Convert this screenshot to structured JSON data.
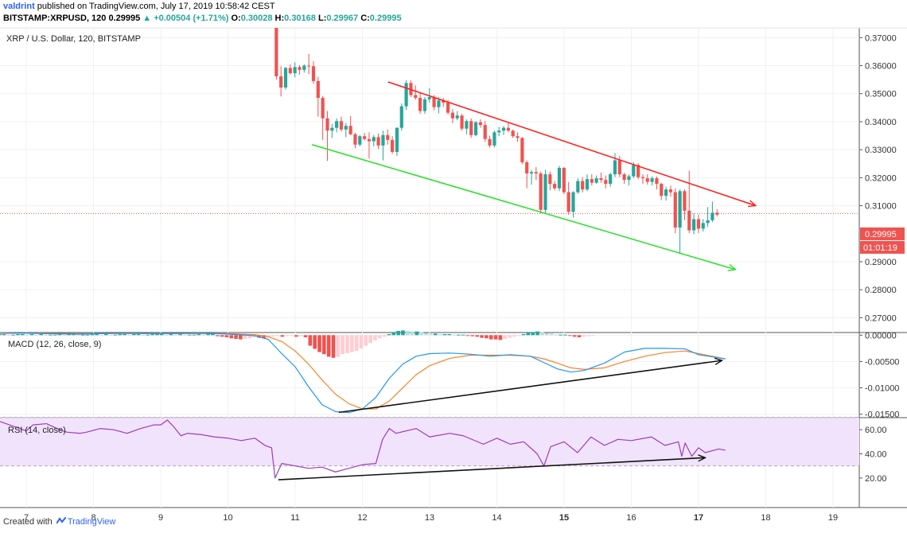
{
  "header": {
    "user": "valdrint",
    "published": "published on TradingView.com, July 17, 2019 10:58:42 CEST",
    "symbol": "BITSTAMP:XRPUSD, 120",
    "last": "0.29995",
    "change": "▲ +0.00504 (+1.71%)",
    "o_label": "O:",
    "o": "0.30028",
    "h_label": "H:",
    "h": "0.30168",
    "l_label": "L:",
    "l": "0.29967",
    "c_label": "C:",
    "c": "0.29995"
  },
  "footer": {
    "created_with": "Created with",
    "brand": "TradingView"
  },
  "colors": {
    "up": "#26a69a",
    "down": "#ef5350",
    "upper_trendline": "#ff1f1f",
    "lower_trendline": "#32e032",
    "macd_line": "#2196f3",
    "signal_line": "#ff7f27",
    "rsi_line": "#9c3bbf",
    "rsi_band": "#f1e3fb",
    "price_tag": "#ef5350"
  },
  "chart_data": [
    {
      "type": "candlestick",
      "title": "XRP / U.S. Dollar, 120, BITSTAMP",
      "xlabel": "",
      "ylabel": "",
      "x_ticks": [
        "7",
        "8",
        "9",
        "10",
        "11",
        "12",
        "13",
        "14",
        "15",
        "16",
        "17",
        "18",
        "19"
      ],
      "y_ticks": [
        "0.37000",
        "0.36000",
        "0.35000",
        "0.34000",
        "0.33000",
        "0.32000",
        "0.31000",
        "0.29000",
        "0.28000",
        "0.27000"
      ],
      "ylim": [
        0.265,
        0.3735
      ],
      "last_price_label": "0.29995",
      "countdown_label": "01:01:19",
      "ohlc": [
        [
          0.3735,
          0.3735,
          0.355,
          0.3562
        ],
        [
          0.3562,
          0.3598,
          0.349,
          0.3522
        ],
        [
          0.3522,
          0.3595,
          0.3515,
          0.3592
        ],
        [
          0.3592,
          0.3605,
          0.3568,
          0.3573
        ],
        [
          0.3573,
          0.3612,
          0.3558,
          0.3595
        ],
        [
          0.3595,
          0.3602,
          0.3568,
          0.3585
        ],
        [
          0.3585,
          0.3605,
          0.3575,
          0.36
        ],
        [
          0.36,
          0.3642,
          0.357,
          0.3598
        ],
        [
          0.3598,
          0.3616,
          0.3535,
          0.3545
        ],
        [
          0.3545,
          0.356,
          0.3418,
          0.3485
        ],
        [
          0.3485,
          0.3492,
          0.3335,
          0.3412
        ],
        [
          0.3412,
          0.3438,
          0.326,
          0.3368
        ],
        [
          0.3368,
          0.3392,
          0.3342,
          0.3378
        ],
        [
          0.3378,
          0.3412,
          0.3362,
          0.3402
        ],
        [
          0.3402,
          0.3418,
          0.3365,
          0.3372
        ],
        [
          0.3372,
          0.3395,
          0.3345,
          0.3385
        ],
        [
          0.3385,
          0.342,
          0.3352,
          0.3355
        ],
        [
          0.3355,
          0.336,
          0.3305,
          0.3318
        ],
        [
          0.3318,
          0.3352,
          0.3312,
          0.3348
        ],
        [
          0.3348,
          0.336,
          0.3332,
          0.3338
        ],
        [
          0.3338,
          0.3362,
          0.3268,
          0.333
        ],
        [
          0.333,
          0.3352,
          0.3312,
          0.3345
        ],
        [
          0.3345,
          0.3358,
          0.3302,
          0.3315
        ],
        [
          0.3315,
          0.3368,
          0.3262,
          0.3352
        ],
        [
          0.3352,
          0.3372,
          0.3318,
          0.3335
        ],
        [
          0.3335,
          0.3348,
          0.3285,
          0.3292
        ],
        [
          0.3292,
          0.338,
          0.3278,
          0.3378
        ],
        [
          0.3378,
          0.3465,
          0.3368,
          0.3455
        ],
        [
          0.3455,
          0.3548,
          0.3442,
          0.3538
        ],
        [
          0.3538,
          0.3548,
          0.3488,
          0.3495
        ],
        [
          0.3495,
          0.353,
          0.3478,
          0.3485
        ],
        [
          0.3485,
          0.3505,
          0.3428,
          0.3438
        ],
        [
          0.3438,
          0.3488,
          0.3428,
          0.348
        ],
        [
          0.348,
          0.352,
          0.3468,
          0.3488
        ],
        [
          0.3488,
          0.3495,
          0.344,
          0.3452
        ],
        [
          0.3452,
          0.3488,
          0.343,
          0.3476
        ],
        [
          0.3476,
          0.3485,
          0.3452,
          0.3468
        ],
        [
          0.3468,
          0.3478,
          0.3425,
          0.3432
        ],
        [
          0.3432,
          0.3445,
          0.3395,
          0.3412
        ],
        [
          0.3412,
          0.3438,
          0.3405,
          0.3422
        ],
        [
          0.3422,
          0.3428,
          0.3368,
          0.3375
        ],
        [
          0.3375,
          0.3408,
          0.3355,
          0.3402
        ],
        [
          0.3402,
          0.3412,
          0.3342,
          0.3352
        ],
        [
          0.3352,
          0.3402,
          0.3348,
          0.3398
        ],
        [
          0.3398,
          0.3408,
          0.3378,
          0.3388
        ],
        [
          0.3388,
          0.3402,
          0.3328,
          0.3338
        ],
        [
          0.3338,
          0.335,
          0.3308,
          0.3315
        ],
        [
          0.3315,
          0.3368,
          0.3308,
          0.3362
        ],
        [
          0.3362,
          0.3382,
          0.3348,
          0.3368
        ],
        [
          0.3368,
          0.3385,
          0.3352,
          0.3378
        ],
        [
          0.3378,
          0.3395,
          0.3362,
          0.3368
        ],
        [
          0.3368,
          0.3372,
          0.3342,
          0.3348
        ],
        [
          0.3348,
          0.3362,
          0.3328,
          0.3342
        ],
        [
          0.3342,
          0.3345,
          0.3248,
          0.3255
        ],
        [
          0.3255,
          0.3262,
          0.3162,
          0.3215
        ],
        [
          0.3215,
          0.3228,
          0.3175,
          0.322
        ],
        [
          0.322,
          0.3238,
          0.3192,
          0.3215
        ],
        [
          0.3215,
          0.3222,
          0.3072,
          0.3085
        ],
        [
          0.3085,
          0.3228,
          0.3075,
          0.3212
        ],
        [
          0.3212,
          0.3222,
          0.3155,
          0.3178
        ],
        [
          0.3178,
          0.3188,
          0.3155,
          0.3162
        ],
        [
          0.3162,
          0.3242,
          0.3152,
          0.3235
        ],
        [
          0.3235,
          0.3238,
          0.3142,
          0.3148
        ],
        [
          0.3148,
          0.3185,
          0.3068,
          0.3078
        ],
        [
          0.3078,
          0.3152,
          0.3058,
          0.3148
        ],
        [
          0.3148,
          0.3198,
          0.3142,
          0.3188
        ],
        [
          0.3188,
          0.3202,
          0.3148,
          0.3158
        ],
        [
          0.3158,
          0.3212,
          0.3152,
          0.3195
        ],
        [
          0.3195,
          0.3212,
          0.3172,
          0.3182
        ],
        [
          0.3182,
          0.3208,
          0.3178,
          0.3198
        ],
        [
          0.3198,
          0.3218,
          0.3182,
          0.3192
        ],
        [
          0.3192,
          0.3208,
          0.3162,
          0.3178
        ],
        [
          0.3178,
          0.3218,
          0.3168,
          0.3212
        ],
        [
          0.3212,
          0.3288,
          0.3202,
          0.3262
        ],
        [
          0.3262,
          0.3278,
          0.3202,
          0.3212
        ],
        [
          0.3212,
          0.3218,
          0.3178,
          0.3192
        ],
        [
          0.3192,
          0.3212,
          0.3172,
          0.3205
        ],
        [
          0.3205,
          0.3255,
          0.3198,
          0.3245
        ],
        [
          0.3245,
          0.3252,
          0.3195,
          0.3202
        ],
        [
          0.3202,
          0.3212,
          0.3178,
          0.3198
        ],
        [
          0.3198,
          0.3212,
          0.3175,
          0.3185
        ],
        [
          0.3185,
          0.3205,
          0.3172,
          0.3198
        ],
        [
          0.3198,
          0.3205,
          0.3158,
          0.3178
        ],
        [
          0.3178,
          0.3182,
          0.312,
          0.3135
        ],
        [
          0.3135,
          0.3168,
          0.3118,
          0.3158
        ],
        [
          0.3158,
          0.3172,
          0.3132,
          0.3148
        ],
        [
          0.3148,
          0.3162,
          0.3002,
          0.3022
        ],
        [
          0.3022,
          0.3158,
          0.2928,
          0.3152
        ],
        [
          0.3152,
          0.3158,
          0.3048,
          0.3082
        ],
        [
          0.3082,
          0.3225,
          0.3002,
          0.3012
        ],
        [
          0.3012,
          0.3072,
          0.2998,
          0.3052
        ],
        [
          0.3052,
          0.3068,
          0.3002,
          0.3018
        ],
        [
          0.3018,
          0.3052,
          0.3008,
          0.3038
        ],
        [
          0.3038,
          0.3095,
          0.3025,
          0.3048
        ],
        [
          0.3048,
          0.3115,
          0.3042,
          0.3075
        ],
        [
          0.3075,
          0.3088,
          0.3062,
          0.3068
        ]
      ],
      "first_bar_x": 10.72,
      "bar_step": 0.069,
      "horizontal_line": 0.3072,
      "upper_trendline": [
        [
          12.38,
          0.3542
        ],
        [
          17.85,
          0.31
        ]
      ],
      "lower_trendline": [
        [
          11.25,
          0.3318
        ],
        [
          17.55,
          0.2872
        ]
      ]
    },
    {
      "type": "histogram+line",
      "title": "MACD (12, 26, close, 9)",
      "y_ticks": [
        "0.00000",
        "-0.00500",
        "-0.01000",
        "-0.01500"
      ],
      "ylim": [
        -0.0155,
        0.0005
      ],
      "series": [
        {
          "x": [
            6.6,
            7.2,
            7.8,
            8.4,
            9.0,
            9.6,
            10.0,
            10.4,
            10.6,
            10.8,
            11.0,
            11.2,
            11.4,
            11.6,
            11.8,
            12.0,
            12.2,
            12.4,
            12.6,
            12.8,
            13.0,
            13.3,
            13.6,
            13.9,
            14.2,
            14.5,
            14.7,
            14.9,
            15.1,
            15.3,
            15.6,
            15.9,
            16.2,
            16.5,
            16.8,
            17.0,
            17.4
          ],
          "values": [
            0.0005,
            0.0003,
            0.0002,
            0.0004,
            0.0003,
            0.0004,
            0.0002,
            -0.0001,
            -0.0008,
            -0.0035,
            -0.006,
            -0.0098,
            -0.0132,
            -0.0145,
            -0.0147,
            -0.014,
            -0.0118,
            -0.0082,
            -0.0055,
            -0.004,
            -0.0035,
            -0.0034,
            -0.0036,
            -0.004,
            -0.0037,
            -0.004,
            -0.0052,
            -0.0064,
            -0.007,
            -0.0067,
            -0.0053,
            -0.0032,
            -0.0025,
            -0.0025,
            -0.0026,
            -0.0037,
            -0.0045
          ]
        },
        {
          "x": [
            6.6,
            7.2,
            7.8,
            8.4,
            9.0,
            9.6,
            10.0,
            10.4,
            10.6,
            10.8,
            11.0,
            11.2,
            11.4,
            11.6,
            11.8,
            12.0,
            12.2,
            12.4,
            12.6,
            12.8,
            13.0,
            13.3,
            13.6,
            13.9,
            14.2,
            14.5,
            14.7,
            14.9,
            15.1,
            15.3,
            15.6,
            15.9,
            16.2,
            16.5,
            16.8,
            17.0,
            17.4
          ],
          "values": [
            0.0003,
            0.0004,
            0.0003,
            0.0003,
            0.0003,
            0.0003,
            0.0003,
            0.0001,
            -0.0003,
            -0.0012,
            -0.003,
            -0.0055,
            -0.0085,
            -0.0112,
            -0.013,
            -0.014,
            -0.014,
            -0.0125,
            -0.01,
            -0.0075,
            -0.0058,
            -0.0044,
            -0.0038,
            -0.0038,
            -0.0038,
            -0.004,
            -0.0045,
            -0.0053,
            -0.0062,
            -0.0065,
            -0.0062,
            -0.005,
            -0.004,
            -0.0033,
            -0.003,
            -0.0035,
            -0.0045
          ]
        }
      ],
      "histogram": {
        "x_start": 6.6,
        "step": 0.069,
        "values": [
          0.0002,
          0.0002,
          0.0001,
          0.0001,
          0.0002,
          0.0002,
          0.0001,
          0.0002,
          0.0001,
          0.0002,
          0.0001,
          0.0001,
          0.0001,
          0.0002,
          0.0001,
          0.0002,
          0.0002,
          0.0001,
          0.0001,
          0.0001,
          0.0002,
          0.0002,
          0.0001,
          0.0002,
          0.0001,
          0.0001,
          0.0002,
          0.0002,
          0.0001,
          0.0002,
          0.0002,
          0.0001,
          0.0001,
          0.0002,
          0.0002,
          0.0002,
          0.0001,
          0.0002,
          0.0001,
          0.0002,
          0.0001,
          0.0001,
          0.0001,
          0.0002,
          0.0001,
          0.0002,
          0.0002,
          -0.0002,
          -0.0003,
          -0.0004,
          -0.0006,
          -0.0007,
          -0.0008,
          -0.0007,
          -0.0006,
          -0.0004,
          -0.0005,
          -0.0006,
          -0.0005,
          -0.0003,
          -0.0002,
          -0.0003,
          -0.0002,
          -0.0001,
          -0.0003,
          -0.0002,
          -0.0004,
          -0.002,
          -0.0026,
          -0.0032,
          -0.0036,
          -0.0041,
          -0.0043,
          -0.0041,
          -0.0036,
          -0.0034,
          -0.0032,
          -0.003,
          -0.0025,
          -0.002,
          -0.0015,
          -0.001,
          -0.0006,
          -0.0003,
          0.0002,
          0.0006,
          0.0008,
          0.0009,
          0.0008,
          0.0007,
          0.0007,
          0.0006,
          0.0004,
          0.0003,
          0.0003,
          0.0002,
          0.0002,
          0.0002,
          0.0001,
          0.0001,
          0.0001,
          -0.0001,
          -0.0002,
          -0.0003,
          -0.0005,
          -0.0006,
          -0.0008,
          -0.0008,
          -0.0009,
          -0.0007,
          -0.0005,
          -0.0003,
          -0.0001,
          0.0002,
          0.0005,
          0.0006,
          0.0007,
          0.0006,
          0.0004,
          0.0003,
          0.0001,
          0.0001,
          0.0001,
          -0.0001,
          -0.0003,
          -0.0004,
          -0.0003,
          -0.0002,
          -0.0001
        ]
      },
      "divergence_line": [
        [
          11.65,
          -0.01465
        ],
        [
          17.35,
          -0.0048
        ]
      ]
    },
    {
      "type": "line",
      "title": "RSI (14, close)",
      "y_ticks": [
        "60.00",
        "40.00",
        "20.00"
      ],
      "ylim": [
        10,
        70
      ],
      "band": [
        30,
        70
      ],
      "band_lines": [
        30,
        70
      ],
      "series": [
        {
          "x": [
            6.6,
            6.8,
            7.0,
            7.1,
            7.3,
            7.5,
            7.6,
            7.8,
            7.9,
            8.1,
            8.3,
            8.5,
            8.7,
            8.9,
            9.0,
            9.1,
            9.2,
            9.3,
            9.4,
            9.6,
            9.8,
            10.0,
            10.2,
            10.4,
            10.55,
            10.65,
            10.7,
            10.8,
            11.0,
            11.2,
            11.4,
            11.6,
            11.8,
            12.0,
            12.2,
            12.3,
            12.4,
            12.5,
            12.8,
            13.0,
            13.3,
            13.5,
            13.8,
            14.0,
            14.2,
            14.4,
            14.6,
            14.7,
            14.8,
            15.0,
            15.2,
            15.4,
            15.6,
            15.8,
            16.0,
            16.3,
            16.5,
            16.7,
            16.75,
            16.8,
            16.9,
            17.0,
            17.1,
            17.3,
            17.4
          ],
          "values": [
            67,
            63,
            59,
            64,
            65,
            60,
            58,
            57,
            58,
            61,
            60,
            57,
            61,
            64,
            64,
            68,
            62,
            55,
            57,
            56,
            54,
            53,
            51,
            53,
            47,
            45,
            20,
            32,
            30,
            28,
            29,
            25,
            28,
            31,
            32,
            52,
            61,
            57,
            61,
            54,
            57,
            55,
            48,
            53,
            48,
            50,
            40,
            30,
            46,
            50,
            41,
            54,
            47,
            52,
            51,
            54,
            47,
            50,
            38,
            49,
            38,
            45,
            41,
            44,
            43
          ]
        }
      ],
      "divergence_line": [
        [
          10.75,
          18.5
        ],
        [
          17.1,
          36.8
        ]
      ]
    }
  ]
}
